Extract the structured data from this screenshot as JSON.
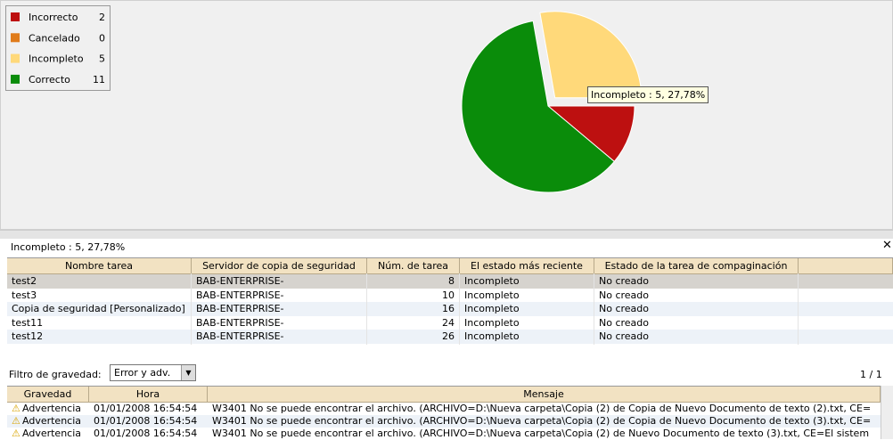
{
  "chart_data": {
    "type": "pie",
    "categories": [
      "Incorrecto",
      "Cancelado",
      "Incompleto",
      "Correcto"
    ],
    "values": [
      2,
      0,
      5,
      11
    ],
    "colors": [
      "#bd1010",
      "#e07b1a",
      "#ffd97a",
      "#0a8c0a"
    ],
    "explode": [
      false,
      false,
      true,
      false
    ],
    "tooltip": "Incompleto : 5, 27,78%"
  },
  "panel": {
    "title": "Incompleto : 5, 27,78%"
  },
  "task_table": {
    "columns": [
      "Nombre tarea",
      "Servidor de copia de seguridad",
      "Núm. de tarea",
      "El estado más reciente",
      "Estado de la tarea de compaginación"
    ],
    "rows": [
      [
        "test2",
        "BAB-ENTERPRISE-",
        8,
        "Incompleto",
        "No creado"
      ],
      [
        "test3",
        "BAB-ENTERPRISE-",
        10,
        "Incompleto",
        "No creado"
      ],
      [
        "Copia de seguridad [Personalizado]",
        "BAB-ENTERPRISE-",
        16,
        "Incompleto",
        "No creado"
      ],
      [
        "test11",
        "BAB-ENTERPRISE-",
        24,
        "Incompleto",
        "No creado"
      ],
      [
        "test12",
        "BAB-ENTERPRISE-",
        26,
        "Incompleto",
        "No creado"
      ]
    ]
  },
  "filter": {
    "label": "Filtro de gravedad:",
    "value": "Error y adv.",
    "pages": "1 / 1"
  },
  "log_table": {
    "columns": [
      "Gravedad",
      "Hora",
      "Mensaje"
    ],
    "rows": [
      [
        "Advertencia",
        "01/01/2008 16:54:54",
        "W3401 No se puede encontrar el archivo. (ARCHIVO=D:\\Nueva carpeta\\Copia (2) de Copia de Nuevo Documento de texto (2).txt, CE="
      ],
      [
        "Advertencia",
        "01/01/2008 16:54:54",
        "W3401 No se puede encontrar el archivo. (ARCHIVO=D:\\Nueva carpeta\\Copia (2) de Copia de Nuevo Documento de texto (3).txt, CE="
      ],
      [
        "Advertencia",
        "01/01/2008 16:54:54",
        "W3401 No se puede encontrar el archivo. (ARCHIVO=D:\\Nueva carpeta\\Copia (2) de Nuevo Documento de texto (3).txt, CE=El sistem"
      ]
    ]
  }
}
